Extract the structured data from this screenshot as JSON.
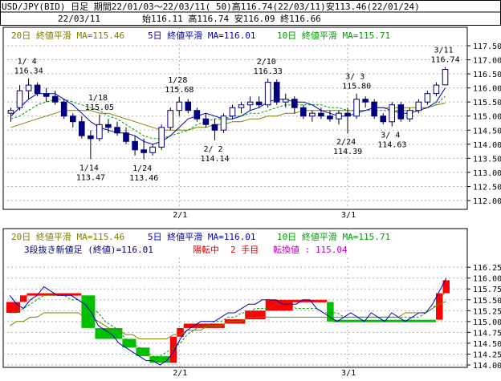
{
  "header": {
    "line1": "USD/JPY(BID) 日足 期間22/01/03～22/03/11( 50)高116.74(22/03/11)安113.46(22/01/24)",
    "date": "22/03/11",
    "ohlc": "始116.11 高116.74 安116.09 終116.66"
  },
  "chart_data": [
    {
      "type": "candlestick",
      "legend": [
        {
          "text": "20日 終値平滑 MA=115.46",
          "color": "#808000"
        },
        {
          "text": "5日 終値平滑 MA=116.01",
          "color": "#0000c0"
        },
        {
          "text": "10日 終値平滑 MA=115.71",
          "color": "#00a000"
        }
      ],
      "ylim": [
        112.0,
        117.5
      ],
      "yticks": [
        "117.50",
        "117.00",
        "116.50",
        "116.00",
        "115.50",
        "115.00",
        "114.50",
        "114.00",
        "113.50",
        "113.00",
        "112.50",
        "112.00"
      ],
      "xticks": [
        "2/1",
        "3/1"
      ],
      "candles": [
        {
          "o": 115.1,
          "h": 115.3,
          "l": 114.8,
          "c": 115.2
        },
        {
          "o": 115.3,
          "h": 116.1,
          "l": 115.2,
          "c": 115.9
        },
        {
          "o": 115.9,
          "h": 116.34,
          "l": 115.6,
          "c": 116.1
        },
        {
          "o": 116.1,
          "h": 116.2,
          "l": 115.7,
          "c": 115.8
        },
        {
          "o": 115.8,
          "h": 116.0,
          "l": 115.5,
          "c": 115.7
        },
        {
          "o": 115.7,
          "h": 115.9,
          "l": 115.4,
          "c": 115.5
        },
        {
          "o": 115.5,
          "h": 115.6,
          "l": 114.9,
          "c": 115.0
        },
        {
          "o": 115.0,
          "h": 115.1,
          "l": 114.6,
          "c": 114.8
        },
        {
          "o": 114.8,
          "h": 115.0,
          "l": 114.2,
          "c": 114.3
        },
        {
          "o": 114.3,
          "h": 114.5,
          "l": 113.47,
          "c": 114.2
        },
        {
          "o": 114.2,
          "h": 115.05,
          "l": 114.1,
          "c": 114.7
        },
        {
          "o": 114.7,
          "h": 114.9,
          "l": 114.4,
          "c": 114.6
        },
        {
          "o": 114.6,
          "h": 114.8,
          "l": 114.3,
          "c": 114.4
        },
        {
          "o": 114.4,
          "h": 114.6,
          "l": 114.0,
          "c": 114.1
        },
        {
          "o": 114.1,
          "h": 114.3,
          "l": 113.6,
          "c": 113.8
        },
        {
          "o": 113.8,
          "h": 114.2,
          "l": 113.46,
          "c": 113.7
        },
        {
          "o": 113.7,
          "h": 114.0,
          "l": 113.6,
          "c": 113.9
        },
        {
          "o": 113.9,
          "h": 114.7,
          "l": 113.8,
          "c": 114.6
        },
        {
          "o": 114.6,
          "h": 115.3,
          "l": 114.5,
          "c": 115.2
        },
        {
          "o": 115.2,
          "h": 115.68,
          "l": 115.0,
          "c": 115.5
        },
        {
          "o": 115.5,
          "h": 115.6,
          "l": 115.1,
          "c": 115.2
        },
        {
          "o": 115.2,
          "h": 115.3,
          "l": 114.8,
          "c": 114.9
        },
        {
          "o": 114.9,
          "h": 115.1,
          "l": 114.6,
          "c": 114.7
        },
        {
          "o": 114.7,
          "h": 114.9,
          "l": 114.14,
          "c": 114.5
        },
        {
          "o": 114.5,
          "h": 115.1,
          "l": 114.4,
          "c": 115.0
        },
        {
          "o": 115.0,
          "h": 115.4,
          "l": 114.9,
          "c": 115.3
        },
        {
          "o": 115.3,
          "h": 115.5,
          "l": 115.1,
          "c": 115.4
        },
        {
          "o": 115.4,
          "h": 115.7,
          "l": 115.2,
          "c": 115.5
        },
        {
          "o": 115.5,
          "h": 115.7,
          "l": 115.3,
          "c": 115.4
        },
        {
          "o": 115.4,
          "h": 116.33,
          "l": 115.3,
          "c": 116.2
        },
        {
          "o": 116.2,
          "h": 116.3,
          "l": 115.4,
          "c": 115.5
        },
        {
          "o": 115.5,
          "h": 115.8,
          "l": 115.3,
          "c": 115.6
        },
        {
          "o": 115.6,
          "h": 115.7,
          "l": 115.1,
          "c": 115.3
        },
        {
          "o": 115.3,
          "h": 115.4,
          "l": 114.9,
          "c": 115.0
        },
        {
          "o": 115.0,
          "h": 115.2,
          "l": 114.8,
          "c": 115.1
        },
        {
          "o": 115.1,
          "h": 115.3,
          "l": 114.9,
          "c": 115.0
        },
        {
          "o": 115.0,
          "h": 115.2,
          "l": 114.8,
          "c": 114.9
        },
        {
          "o": 114.9,
          "h": 115.2,
          "l": 114.7,
          "c": 115.1
        },
        {
          "o": 115.1,
          "h": 115.3,
          "l": 114.39,
          "c": 115.0
        },
        {
          "o": 115.0,
          "h": 115.8,
          "l": 114.9,
          "c": 115.6
        },
        {
          "o": 115.6,
          "h": 115.7,
          "l": 115.3,
          "c": 115.5
        },
        {
          "o": 115.5,
          "h": 115.6,
          "l": 114.9,
          "c": 115.0
        },
        {
          "o": 115.0,
          "h": 115.1,
          "l": 114.7,
          "c": 114.8
        },
        {
          "o": 114.8,
          "h": 115.5,
          "l": 114.63,
          "c": 115.4
        },
        {
          "o": 115.4,
          "h": 115.5,
          "l": 114.8,
          "c": 114.9
        },
        {
          "o": 114.9,
          "h": 115.3,
          "l": 114.8,
          "c": 115.2
        },
        {
          "o": 115.2,
          "h": 115.6,
          "l": 115.1,
          "c": 115.5
        },
        {
          "o": 115.5,
          "h": 115.9,
          "l": 115.4,
          "c": 115.8
        },
        {
          "o": 115.8,
          "h": 116.2,
          "l": 115.7,
          "c": 116.1
        },
        {
          "o": 116.11,
          "h": 116.74,
          "l": 116.09,
          "c": 116.66
        }
      ],
      "ma5": [
        115.0,
        115.3,
        115.6,
        115.8,
        115.8,
        115.8,
        115.6,
        115.4,
        115.1,
        114.8,
        114.6,
        114.5,
        114.4,
        114.4,
        114.3,
        114.1,
        114.0,
        114.1,
        114.3,
        114.6,
        114.9,
        115.0,
        115.1,
        115.0,
        114.9,
        114.9,
        115.0,
        115.2,
        115.3,
        115.5,
        115.6,
        115.6,
        115.5,
        115.5,
        115.4,
        115.2,
        115.1,
        115.0,
        115.0,
        115.1,
        115.2,
        115.3,
        115.3,
        115.2,
        115.1,
        115.1,
        115.2,
        115.3,
        115.5,
        116.0
      ],
      "ma10": [
        114.9,
        115.0,
        115.2,
        115.4,
        115.5,
        115.6,
        115.6,
        115.5,
        115.4,
        115.3,
        115.2,
        115.0,
        114.9,
        114.7,
        114.5,
        114.3,
        114.2,
        114.2,
        114.3,
        114.4,
        114.5,
        114.7,
        114.8,
        114.9,
        114.9,
        115.0,
        115.0,
        115.1,
        115.1,
        115.2,
        115.3,
        115.4,
        115.4,
        115.4,
        115.4,
        115.4,
        115.3,
        115.3,
        115.2,
        115.2,
        115.2,
        115.2,
        115.2,
        115.2,
        115.2,
        115.2,
        115.2,
        115.3,
        115.4,
        115.71
      ],
      "ma20": [
        114.6,
        114.7,
        114.8,
        114.9,
        115.0,
        115.1,
        115.2,
        115.2,
        115.2,
        115.2,
        115.1,
        115.1,
        115.0,
        114.9,
        114.8,
        114.7,
        114.6,
        114.5,
        114.5,
        114.5,
        114.5,
        114.6,
        114.6,
        114.7,
        114.7,
        114.8,
        114.8,
        114.9,
        114.9,
        115.0,
        115.0,
        115.1,
        115.1,
        115.2,
        115.2,
        115.2,
        115.2,
        115.2,
        115.2,
        115.2,
        115.2,
        115.3,
        115.3,
        115.3,
        115.3,
        115.3,
        115.3,
        115.3,
        115.4,
        115.46
      ],
      "annotations": [
        {
          "date": "1/ 4",
          "value": "116.34",
          "idx": 2,
          "pos": "above",
          "color": "#e00000"
        },
        {
          "date": "1/18",
          "value": "115.05",
          "idx": 10,
          "pos": "above",
          "color": "#e00000"
        },
        {
          "date": "1/14",
          "value": "113.47",
          "idx": 9,
          "pos": "below",
          "color": "#00a000"
        },
        {
          "date": "1/24",
          "value": "113.46",
          "idx": 15,
          "pos": "below",
          "color": "#00a000"
        },
        {
          "date": "1/28",
          "value": "115.68",
          "idx": 19,
          "pos": "above",
          "color": "#e00000"
        },
        {
          "date": "2/ 2",
          "value": "114.14",
          "idx": 23,
          "pos": "below",
          "color": "#00a000"
        },
        {
          "date": "2/10",
          "value": "116.33",
          "idx": 29,
          "pos": "above",
          "color": "#e00000"
        },
        {
          "date": "3/ 3",
          "value": "115.80",
          "idx": 39,
          "pos": "above",
          "color": "#e00000"
        },
        {
          "date": "2/24",
          "value": "114.39",
          "idx": 38,
          "pos": "below",
          "color": "#00a000"
        },
        {
          "date": "3/ 4",
          "value": "114.63",
          "idx": 43,
          "pos": "below",
          "color": "#00a000"
        },
        {
          "date": "3/11",
          "value": "116.74",
          "idx": 49,
          "pos": "above",
          "color": "#e00000"
        }
      ]
    },
    {
      "type": "three-line-break",
      "legend": [
        {
          "text": "20日 終値平滑 MA=115.46",
          "color": "#808000"
        },
        {
          "text": "5日 終値平滑 MA=116.01",
          "color": "#0000c0"
        },
        {
          "text": "10日 終値平滑 MA=115.71",
          "color": "#00a000"
        }
      ],
      "info": {
        "label": "3段抜き新値足 (終値)=116.01",
        "state": "陽転中",
        "count": "2 手目",
        "switch": "転換値 : 115.04"
      },
      "ylim": [
        114.0,
        116.4
      ],
      "yticks": [
        "116.25",
        "116.00",
        "115.75",
        "115.50",
        "115.25",
        "115.00",
        "114.75",
        "114.50",
        "114.25",
        "114.00"
      ],
      "xticks": [
        "2/1",
        "3/1"
      ],
      "bricks": [
        {
          "from": 0,
          "to": 2,
          "lo": 115.2,
          "hi": 115.45,
          "color": "red"
        },
        {
          "from": 2,
          "to": 3,
          "lo": 115.45,
          "hi": 115.6,
          "color": "red"
        },
        {
          "from": 3,
          "to": 11,
          "lo": 115.6,
          "hi": 115.65,
          "color": "red"
        },
        {
          "from": 11,
          "to": 13,
          "lo": 114.85,
          "hi": 115.6,
          "color": "green"
        },
        {
          "from": 13,
          "to": 17,
          "lo": 114.6,
          "hi": 114.85,
          "color": "green"
        },
        {
          "from": 17,
          "to": 19,
          "lo": 114.4,
          "hi": 114.6,
          "color": "green"
        },
        {
          "from": 19,
          "to": 21,
          "lo": 114.2,
          "hi": 114.4,
          "color": "green"
        },
        {
          "from": 21,
          "to": 24,
          "lo": 114.05,
          "hi": 114.2,
          "color": "green"
        },
        {
          "from": 24,
          "to": 25,
          "lo": 114.05,
          "hi": 114.65,
          "color": "red"
        },
        {
          "from": 25,
          "to": 26,
          "lo": 114.65,
          "hi": 114.85,
          "color": "red"
        },
        {
          "from": 26,
          "to": 32,
          "lo": 114.85,
          "hi": 114.95,
          "color": "red"
        },
        {
          "from": 32,
          "to": 35,
          "lo": 114.95,
          "hi": 115.05,
          "color": "red"
        },
        {
          "from": 35,
          "to": 38,
          "lo": 115.05,
          "hi": 115.25,
          "color": "red"
        },
        {
          "from": 38,
          "to": 42,
          "lo": 115.25,
          "hi": 115.5,
          "color": "red"
        },
        {
          "from": 42,
          "to": 47,
          "lo": 115.45,
          "hi": 115.5,
          "color": "red"
        },
        {
          "from": 47,
          "to": 48,
          "lo": 115.0,
          "hi": 115.45,
          "color": "green"
        },
        {
          "from": 48,
          "to": 63,
          "lo": 115.0,
          "hi": 115.04,
          "color": "green"
        },
        {
          "from": 63,
          "to": 64,
          "lo": 115.04,
          "hi": 115.65,
          "color": "red"
        },
        {
          "from": 64,
          "to": 65,
          "lo": 115.65,
          "hi": 115.95,
          "color": "red"
        }
      ],
      "nbricks": 65,
      "line_ma5": [
        115.6,
        115.4,
        115.3,
        115.5,
        115.6,
        115.8,
        115.7,
        115.6,
        115.6,
        115.6,
        115.5,
        115.4,
        115.2,
        114.9,
        114.8,
        114.7,
        114.5,
        114.4,
        114.3,
        114.2,
        114.1,
        114.1,
        114.0,
        114.1,
        114.3,
        114.6,
        114.8,
        114.9,
        115.0,
        115.0,
        115.0,
        115.1,
        115.2,
        115.2,
        115.3,
        115.4,
        115.4,
        115.5,
        115.5,
        115.5,
        115.4,
        115.4,
        115.4,
        115.5,
        115.5,
        115.3,
        115.2,
        115.1,
        115.0,
        115.1,
        115.2,
        115.1,
        115.0,
        115.2,
        115.1,
        115.0,
        115.2,
        115.1,
        115.0,
        115.1,
        115.2,
        115.2,
        115.4,
        115.7,
        116.0
      ],
      "line_ma10": [
        115.2,
        115.2,
        115.3,
        115.4,
        115.5,
        115.6,
        115.6,
        115.6,
        115.6,
        115.5,
        115.5,
        115.4,
        115.3,
        115.2,
        115.0,
        114.9,
        114.8,
        114.6,
        114.5,
        114.4,
        114.3,
        114.2,
        114.2,
        114.3,
        114.4,
        114.5,
        114.7,
        114.8,
        114.9,
        114.9,
        115.0,
        115.0,
        115.1,
        115.1,
        115.2,
        115.2,
        115.3,
        115.3,
        115.3,
        115.4,
        115.4,
        115.4,
        115.3,
        115.3,
        115.3,
        115.3,
        115.2,
        115.2,
        115.2,
        115.1,
        115.1,
        115.1,
        115.1,
        115.1,
        115.1,
        115.1,
        115.1,
        115.1,
        115.1,
        115.1,
        115.1,
        115.2,
        115.3,
        115.5,
        115.71
      ],
      "line_ma20": [
        114.9,
        115.0,
        115.0,
        115.1,
        115.1,
        115.2,
        115.2,
        115.2,
        115.2,
        115.2,
        115.2,
        115.1,
        115.1,
        115.0,
        114.9,
        114.8,
        114.8,
        114.7,
        114.7,
        114.6,
        114.6,
        114.6,
        114.6,
        114.6,
        114.7,
        114.7,
        114.8,
        114.8,
        114.8,
        114.9,
        114.9,
        114.9,
        115.0,
        115.0,
        115.0,
        115.1,
        115.1,
        115.1,
        115.1,
        115.1,
        115.1,
        115.1,
        115.1,
        115.1,
        115.1,
        115.1,
        115.1,
        115.1,
        115.1,
        115.1,
        115.1,
        115.1,
        115.1,
        115.1,
        115.1,
        115.1,
        115.1,
        115.1,
        115.2,
        115.2,
        115.2,
        115.2,
        115.3,
        115.4,
        115.46
      ]
    }
  ]
}
